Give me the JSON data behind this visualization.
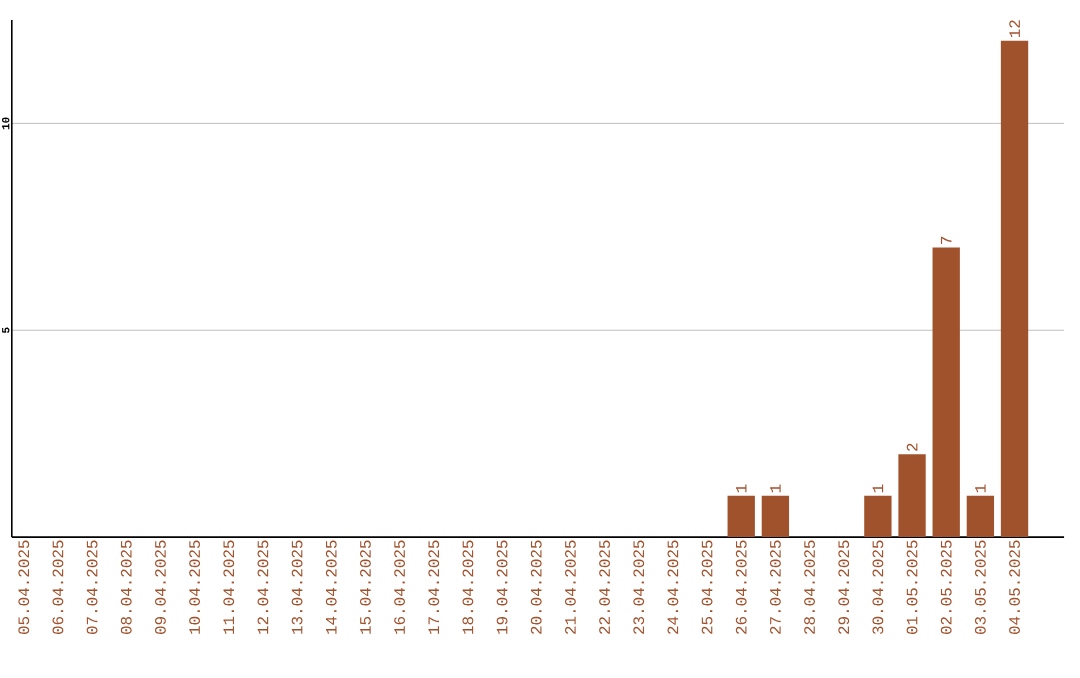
{
  "chart_data": {
    "type": "bar",
    "categories": [
      "05.04.2025",
      "06.04.2025",
      "07.04.2025",
      "08.04.2025",
      "09.04.2025",
      "10.04.2025",
      "11.04.2025",
      "12.04.2025",
      "13.04.2025",
      "14.04.2025",
      "15.04.2025",
      "16.04.2025",
      "17.04.2025",
      "18.04.2025",
      "19.04.2025",
      "20.04.2025",
      "21.04.2025",
      "22.04.2025",
      "23.04.2025",
      "24.04.2025",
      "25.04.2025",
      "26.04.2025",
      "27.04.2025",
      "28.04.2025",
      "29.04.2025",
      "30.04.2025",
      "01.05.2025",
      "02.05.2025",
      "03.05.2025",
      "04.05.2025"
    ],
    "values": [
      0,
      0,
      0,
      0,
      0,
      0,
      0,
      0,
      0,
      0,
      0,
      0,
      0,
      0,
      0,
      0,
      0,
      0,
      0,
      0,
      0,
      1,
      1,
      0,
      0,
      1,
      2,
      7,
      1,
      12
    ],
    "value_labels": [
      null,
      null,
      null,
      null,
      null,
      null,
      null,
      null,
      null,
      null,
      null,
      null,
      null,
      null,
      null,
      null,
      null,
      null,
      null,
      null,
      null,
      "1",
      "1",
      null,
      null,
      "1",
      "2",
      "7",
      "1",
      "12"
    ],
    "color": "#a0522d",
    "ylim": [
      0,
      12.5
    ],
    "yticks": [
      5,
      10
    ],
    "grid": "y"
  }
}
